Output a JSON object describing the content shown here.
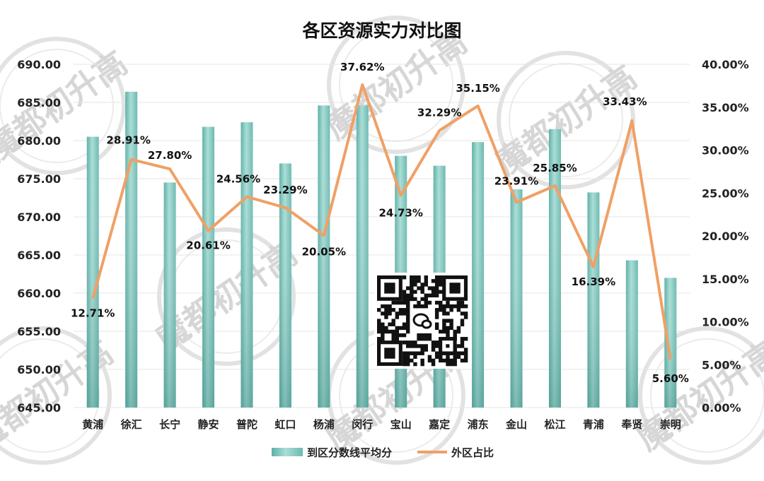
{
  "chart_data": {
    "type": "bar+line",
    "title": "各区资源实力对比图",
    "categories": [
      "黄浦",
      "徐汇",
      "长宁",
      "静安",
      "普陀",
      "虹口",
      "杨浦",
      "闵行",
      "宝山",
      "嘉定",
      "浦东",
      "金山",
      "松江",
      "青浦",
      "奉贤",
      "崇明"
    ],
    "series": [
      {
        "name": "到区分数线平均分",
        "type": "bar",
        "axis": "left",
        "color": "#7fc9bf",
        "values": [
          680.5,
          686.4,
          674.5,
          681.8,
          682.4,
          677.0,
          684.6,
          684.6,
          678.0,
          676.7,
          679.8,
          673.6,
          681.5,
          673.2,
          664.3,
          662.0
        ]
      },
      {
        "name": "外区占比",
        "type": "line",
        "axis": "right",
        "color": "#f0a066",
        "values": [
          12.71,
          28.91,
          27.8,
          20.61,
          24.56,
          23.29,
          20.05,
          37.62,
          24.73,
          32.29,
          35.15,
          23.91,
          25.85,
          16.39,
          33.43,
          5.6
        ],
        "labels": [
          "12.71%",
          "28.91%",
          "27.80%",
          "20.61%",
          "24.56%",
          "23.29%",
          "20.05%",
          "37.62%",
          "24.73%",
          "32.29%",
          "35.15%",
          "23.91%",
          "25.85%",
          "16.39%",
          "33.43%",
          "5.60%"
        ]
      }
    ],
    "y_left": {
      "min": 645,
      "max": 690,
      "ticks": [
        "690.00",
        "685.00",
        "680.00",
        "675.00",
        "670.00",
        "665.00",
        "660.00",
        "655.00",
        "650.00",
        "645.00"
      ]
    },
    "y_right": {
      "min": 0,
      "max": 40,
      "ticks": [
        "40.00%",
        "35.00%",
        "30.00%",
        "25.00%",
        "20.00%",
        "15.00%",
        "10.00%",
        "5.00%",
        "0.00%"
      ]
    },
    "legend_position": "bottom",
    "grid": true
  },
  "watermark": "魔都初升高"
}
